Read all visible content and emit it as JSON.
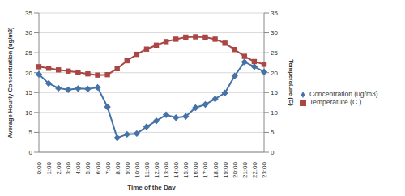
{
  "chart_data": {
    "type": "line",
    "x_label": "Time of the Day",
    "y_label": "Average Hourly Concentration (ug/m3)",
    "y2_label": "Temperature (C)",
    "categories": [
      "0:00",
      "1:00",
      "2:00",
      "3:00",
      "4:00",
      "5:00",
      "6:00",
      "7:00",
      "8:00",
      "9:00",
      "10:00",
      "11:00",
      "12:00",
      "13:00",
      "14:00",
      "15:00",
      "16:00",
      "17:00",
      "18:00",
      "19:00",
      "20:00",
      "21:00",
      "22:00",
      "23:00"
    ],
    "series": [
      {
        "name": "Concentration (ug/m3)",
        "color": "#4572a7",
        "marker": "diamond",
        "values": [
          19.6,
          17.3,
          16.1,
          15.7,
          16.0,
          15.9,
          16.3,
          11.4,
          3.6,
          4.5,
          4.7,
          6.4,
          7.9,
          9.4,
          8.7,
          9.0,
          11.2,
          12.0,
          13.4,
          14.9,
          19.2,
          22.7,
          21.5,
          20.2
        ]
      },
      {
        "name": "Temperature (C )",
        "color": "#aa4643",
        "marker": "square",
        "axis": "y2",
        "values": [
          21.5,
          21.1,
          20.7,
          20.4,
          20.1,
          19.7,
          19.4,
          19.5,
          21.0,
          23.0,
          24.6,
          25.9,
          26.9,
          27.8,
          28.4,
          28.9,
          29.0,
          28.9,
          28.4,
          27.4,
          25.8,
          24.1,
          22.8,
          22.1
        ]
      }
    ],
    "ylim": [
      0,
      35
    ],
    "yticks": [
      0,
      5,
      10,
      15,
      20,
      25,
      30,
      35
    ],
    "y2lim": [
      0,
      35
    ],
    "y2ticks": [
      0,
      5,
      10,
      15,
      20,
      25,
      30,
      35
    ],
    "grid": true,
    "legend": "right"
  }
}
